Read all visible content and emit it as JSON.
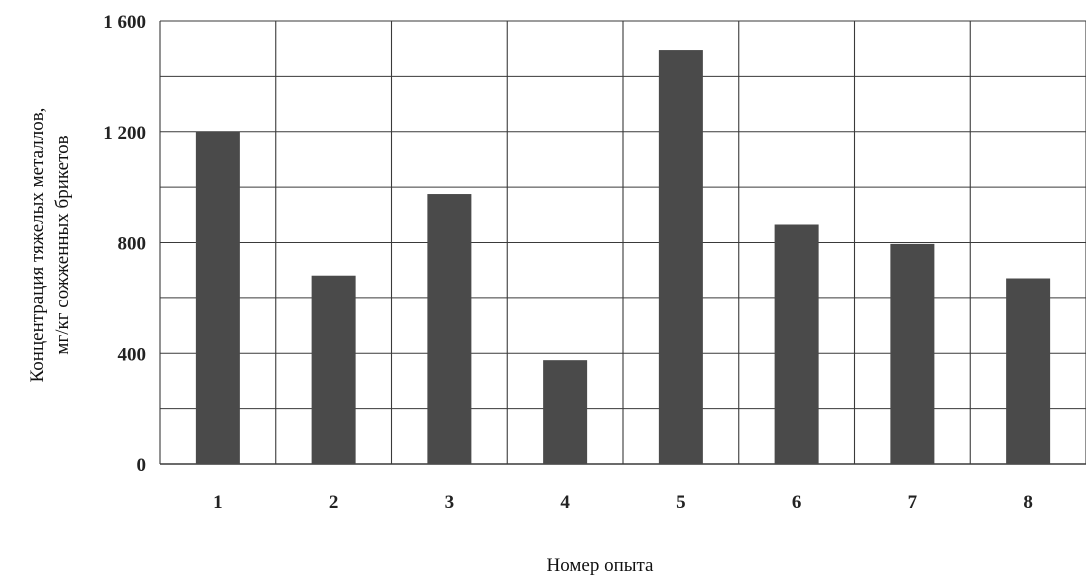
{
  "colors": {
    "bar": "#4a4a4a",
    "grid": "#3a3a3a",
    "background": "#ffffff",
    "text": "#222222"
  },
  "chart_data": {
    "type": "bar",
    "title": "",
    "xlabel": "Номер опыта",
    "ylabel_lines": [
      "Концентрация тяжелых металлов,",
      "мг/кг сожженных брикетов"
    ],
    "categories": [
      "1",
      "2",
      "3",
      "4",
      "5",
      "6",
      "7",
      "8"
    ],
    "values": [
      1200,
      680,
      975,
      375,
      1495,
      865,
      795,
      670
    ],
    "ylim": [
      0,
      1600
    ],
    "yticks": [
      0,
      400,
      800,
      1200,
      1600
    ],
    "ytick_labels": [
      "0",
      "400",
      "800",
      "1 200",
      "1 600"
    ],
    "minor_grid_step": 200,
    "grid": true,
    "legend": "none"
  }
}
